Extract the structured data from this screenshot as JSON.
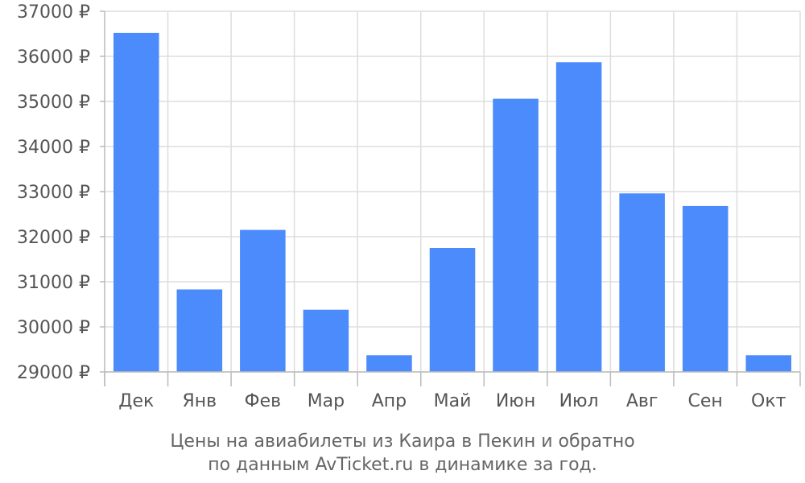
{
  "chart_data": {
    "type": "bar",
    "categories": [
      "Дек",
      "Янв",
      "Фев",
      "Мар",
      "Апр",
      "Май",
      "Июн",
      "Июл",
      "Авг",
      "Сен",
      "Окт"
    ],
    "values": [
      36520,
      30830,
      32150,
      30380,
      29370,
      31750,
      35060,
      35870,
      32960,
      32680,
      29370
    ],
    "ylim": [
      29000,
      37000
    ],
    "yticks": [
      29000,
      30000,
      31000,
      32000,
      33000,
      34000,
      35000,
      36000,
      37000
    ],
    "ytick_suffix": " ₽",
    "grid": true,
    "bar_color": "#4c8bfc",
    "caption_lines": [
      "Цены на авиабилеты из Каира в Пекин и обратно",
      "по данным AvTicket.ru в динамике за год."
    ]
  }
}
